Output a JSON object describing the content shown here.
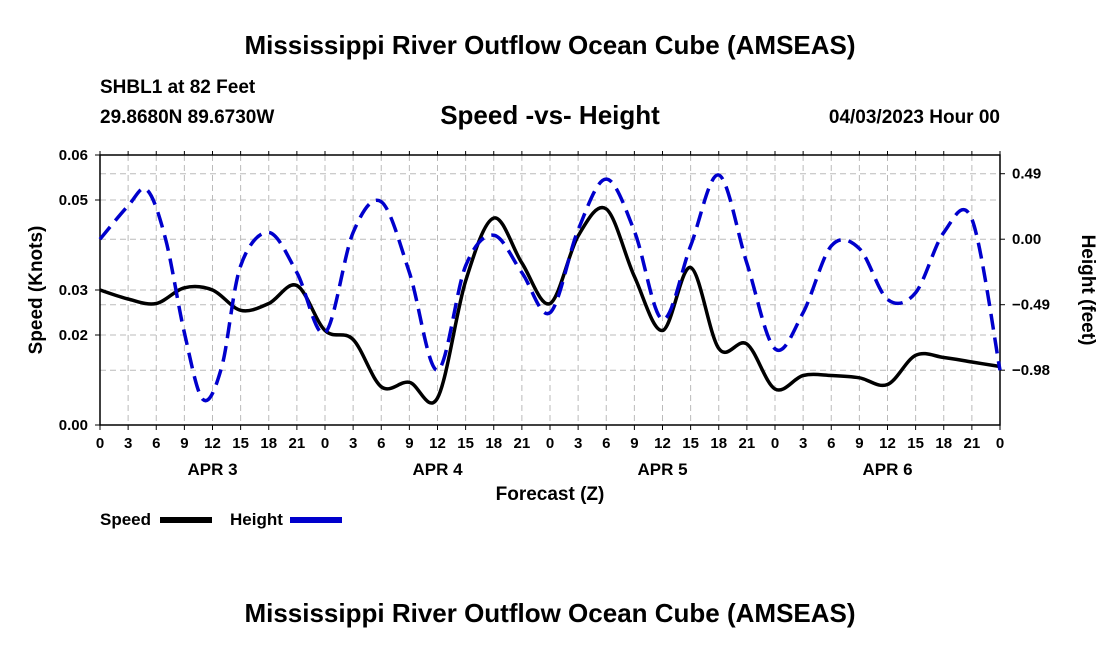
{
  "titles": {
    "main": "Mississippi River Outflow Ocean Cube (AMSEAS)",
    "main_repeat": "Mississippi River Outflow Ocean Cube (AMSEAS)"
  },
  "station": {
    "name": "SHBL1 at 82 Feet",
    "coords": "29.8680N  89.6730W"
  },
  "datetime": "04/03/2023 Hour 00",
  "chart_data": {
    "type": "line",
    "title": "Speed -vs- Height",
    "xlabel": "Forecast (Z)",
    "ylabel": "Speed (Knots)",
    "y2label": "Height (feet)",
    "xlim": [
      0,
      96
    ],
    "ylim": [
      0,
      0.06
    ],
    "y2lim": [
      -1.39,
      0.63
    ],
    "grid": true,
    "x_tick_labels": [
      "0",
      "3",
      "6",
      "9",
      "12",
      "15",
      "18",
      "21",
      "0",
      "3",
      "6",
      "9",
      "12",
      "15",
      "18",
      "21",
      "0",
      "3",
      "6",
      "9",
      "12",
      "15",
      "18",
      "21",
      "0",
      "3",
      "6",
      "9",
      "12",
      "15",
      "18",
      "21",
      "0"
    ],
    "day_labels": [
      "APR 3",
      "APR 4",
      "APR 5",
      "APR 6"
    ],
    "y_ticks": [
      0.0,
      0.02,
      0.03,
      0.05,
      0.06
    ],
    "y_tick_labels": [
      "0.00",
      "0.02",
      "0.03",
      "0.05",
      "0.06"
    ],
    "y2_ticks": [
      0.49,
      0.0,
      -0.49,
      -0.98
    ],
    "y2_tick_labels": [
      "0.49",
      "0.00",
      "−0.49",
      "−0.98"
    ],
    "legend_position": "bottom-left",
    "series": [
      {
        "name": "Speed",
        "axis": "left",
        "color": "#000000",
        "style": "solid",
        "x": [
          0,
          3,
          6,
          9,
          12,
          15,
          18,
          21,
          24,
          27,
          30,
          33,
          36,
          39,
          42,
          45,
          48,
          51,
          54,
          57,
          60,
          63,
          66,
          69,
          72,
          75,
          78,
          81,
          84,
          87,
          90,
          93,
          96
        ],
        "values": [
          0.03,
          0.028,
          0.027,
          0.0305,
          0.03,
          0.0255,
          0.027,
          0.031,
          0.021,
          0.019,
          0.0085,
          0.0095,
          0.006,
          0.032,
          0.046,
          0.036,
          0.027,
          0.042,
          0.048,
          0.033,
          0.021,
          0.035,
          0.017,
          0.018,
          0.008,
          0.011,
          0.011,
          0.0105,
          0.009,
          0.0155,
          0.015,
          0.014,
          0.013
        ]
      },
      {
        "name": "Height",
        "axis": "right",
        "color": "#0000cc",
        "style": "dashed",
        "x": [
          0,
          3,
          5,
          7,
          9,
          11,
          13,
          15,
          18,
          21,
          24,
          27,
          30,
          33,
          36,
          39,
          42,
          45,
          48,
          51,
          54,
          57,
          60,
          63,
          66,
          69,
          72,
          75,
          78,
          81,
          84,
          87,
          90,
          93,
          96
        ],
        "values": [
          0.0,
          0.25,
          0.37,
          0.0,
          -0.7,
          -1.2,
          -0.95,
          -0.2,
          0.05,
          -0.25,
          -0.7,
          0.05,
          0.28,
          -0.25,
          -0.98,
          -0.2,
          0.03,
          -0.25,
          -0.55,
          0.07,
          0.45,
          0.06,
          -0.6,
          -0.05,
          0.48,
          -0.18,
          -0.82,
          -0.55,
          -0.05,
          -0.07,
          -0.45,
          -0.4,
          0.05,
          0.15,
          -0.98
        ]
      }
    ]
  },
  "legend": {
    "speed": "Speed",
    "height": "Height"
  }
}
